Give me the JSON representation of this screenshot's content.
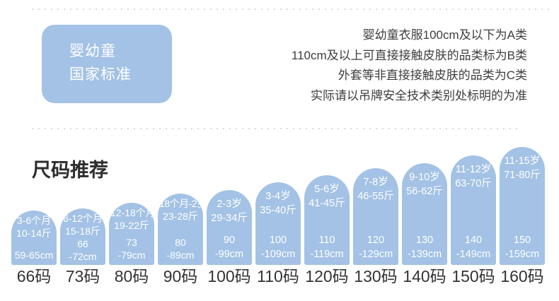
{
  "colors": {
    "accent_blue": "#a3c2e5",
    "text_dark": "#3e3e3e",
    "dot_gray": "#d9d9d9",
    "white_text": "#ffffff"
  },
  "standard_section": {
    "badge": {
      "line1": "婴幼童",
      "line2": "国家标准"
    },
    "notes": {
      "line1": "婴幼童衣服100cm及以下为A类",
      "line2": "110cm及以上可直接接触皮肤的品类标为B类",
      "line3": "外套等非直接接触皮肤的品类为C类",
      "line4": "实际请以吊牌安全技术类别处标明的为准"
    }
  },
  "size_section": {
    "title": "尺码推荐",
    "arches": [
      {
        "size": "66码",
        "age": "3-6个月",
        "weight": "10-14斤",
        "height_line1": "59-65cm",
        "height_line2": "",
        "arch_height": 77
      },
      {
        "size": "73码",
        "age": "6-12个月",
        "weight": "15-18斤",
        "height_line1": "66",
        "height_line2": "-72cm",
        "arch_height": 80
      },
      {
        "size": "80码",
        "age": "12-18个月",
        "weight": "19-22斤",
        "height_line1": "73",
        "height_line2": "-79cm",
        "arch_height": 88
      },
      {
        "size": "90码",
        "age": "18个月-2岁",
        "weight": "23-28斤",
        "height_line1": "80",
        "height_line2": "-89cm",
        "arch_height": 101
      },
      {
        "size": "100码",
        "age": "2-3岁",
        "weight": "29-34斤",
        "height_line1": "90",
        "height_line2": "-99cm",
        "arch_height": 106
      },
      {
        "size": "110码",
        "age": "3-4岁",
        "weight": "35-40斤",
        "height_line1": "100",
        "height_line2": "-109cm",
        "arch_height": 117
      },
      {
        "size": "120码",
        "age": "5-6岁",
        "weight": "41-45斤",
        "height_line1": "110",
        "height_line2": "-119cm",
        "arch_height": 127
      },
      {
        "size": "130码",
        "age": "7-8岁",
        "weight": "46-55斤",
        "height_line1": "120",
        "height_line2": "-129cm",
        "arch_height": 137
      },
      {
        "size": "140码",
        "age": "9-10岁",
        "weight": "56-62斤",
        "height_line1": "130",
        "height_line2": "-139cm",
        "arch_height": 144
      },
      {
        "size": "150码",
        "age": "11-12岁",
        "weight": "63-70斤",
        "height_line1": "140",
        "height_line2": "-149cm",
        "arch_height": 155
      },
      {
        "size": "160码",
        "age": "11-15岁",
        "weight": "71-80斤",
        "height_line1": "150",
        "height_line2": "-159cm",
        "arch_height": 167
      }
    ]
  }
}
